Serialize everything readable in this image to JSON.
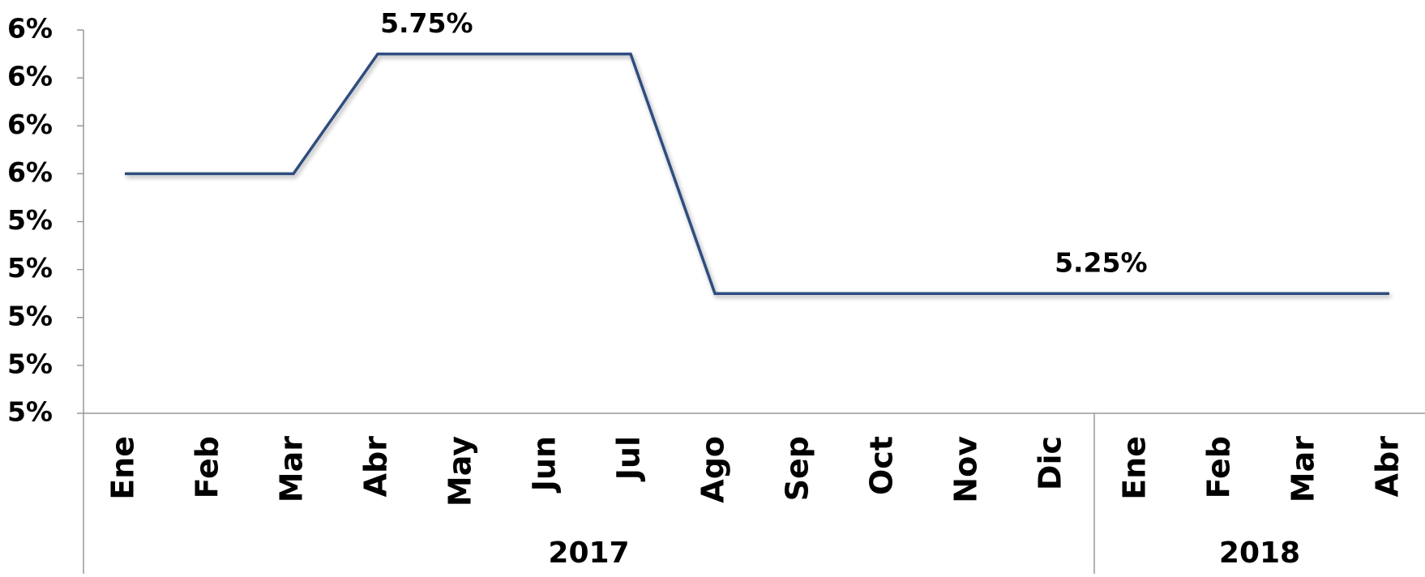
{
  "chart_data": {
    "type": "line",
    "categories": [
      "Ene",
      "Feb",
      "Mar",
      "Abr",
      "May",
      "Jun",
      "Jul",
      "Ago",
      "Sep",
      "Oct",
      "Nov",
      "Dic",
      "Ene",
      "Feb",
      "Mar",
      "Abr"
    ],
    "groups": [
      {
        "label": "2017",
        "count": 12
      },
      {
        "label": "2018",
        "count": 4
      }
    ],
    "series": [
      {
        "color": "#2e4d7f",
        "values": [
          5.5,
          5.5,
          5.5,
          5.75,
          5.75,
          5.75,
          5.75,
          5.25,
          5.25,
          5.25,
          5.25,
          5.25,
          5.25,
          5.25,
          5.25,
          5.25
        ],
        "value_labels": [
          null,
          null,
          null,
          "5.75%",
          null,
          null,
          null,
          null,
          null,
          null,
          null,
          "5.25%",
          null,
          null,
          null,
          null
        ]
      }
    ],
    "ylim": [
      5.0,
      5.8
    ],
    "yticks": [
      {
        "value": 5.0,
        "label": "5%"
      },
      {
        "value": 5.1,
        "label": "5%"
      },
      {
        "value": 5.2,
        "label": "5%"
      },
      {
        "value": 5.3,
        "label": "5%"
      },
      {
        "value": 5.4,
        "label": "5%"
      },
      {
        "value": 5.5,
        "label": "6%"
      },
      {
        "value": 5.6,
        "label": "6%"
      },
      {
        "value": 5.7,
        "label": "6%"
      },
      {
        "value": 5.8,
        "label": "6%"
      }
    ]
  }
}
